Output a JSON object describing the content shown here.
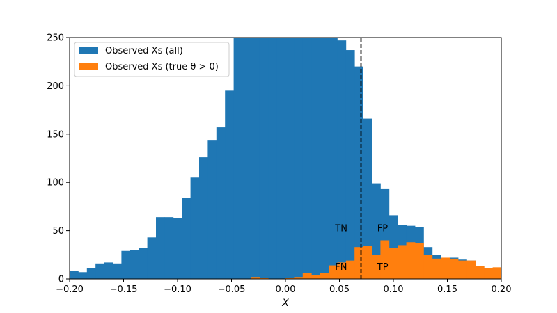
{
  "chart_data": {
    "type": "bar",
    "xlabel": "X",
    "ylabel": "",
    "xlim": [
      -0.2,
      0.2
    ],
    "ylim": [
      0,
      250
    ],
    "xticks": [
      "-0.20",
      "-0.15",
      "-0.10",
      "-0.05",
      "0.00",
      "0.05",
      "0.10",
      "0.15",
      "0.20"
    ],
    "yticks": [
      "0",
      "50",
      "100",
      "150",
      "200",
      "250"
    ],
    "grid": false,
    "legend_position": "upper-left",
    "threshold_line": {
      "x": 0.07,
      "style": "dashed",
      "color": "#000000"
    },
    "bin_edges_start": -0.2,
    "bin_width": 0.008,
    "series": [
      {
        "name": "Observed $X$s (all)",
        "legend_label": "Observed Xs (all)",
        "color": "#1f77b4",
        "values": [
          8,
          7,
          11,
          16,
          17,
          16,
          29,
          30,
          32,
          43,
          64,
          64,
          63,
          84,
          105,
          126,
          144,
          157,
          195,
          250,
          250,
          250,
          250,
          250,
          250,
          250,
          250,
          250,
          250,
          250,
          250,
          247,
          237,
          220,
          166,
          99,
          93,
          66,
          56,
          55,
          54,
          33,
          25,
          21,
          22,
          20,
          19,
          13,
          11,
          11
        ]
      },
      {
        "name": "Observed $X$s (true $\\theta > 0$)",
        "legend_label": "Observed Xs (true θ > 0)",
        "color": "#ff7f0e",
        "values": [
          0,
          0,
          0,
          0,
          0,
          0,
          0,
          0,
          0,
          0,
          0,
          0,
          0,
          0,
          0,
          0,
          0,
          0,
          0,
          0,
          0,
          2,
          1,
          0,
          0,
          1,
          2,
          6,
          4,
          6,
          14,
          17,
          19,
          33,
          34,
          25,
          40,
          32,
          35,
          38,
          37,
          25,
          21,
          22,
          21,
          19,
          19,
          13,
          11,
          12
        ]
      }
    ],
    "annotations": [
      {
        "text": "TN",
        "x": 0.046,
        "y": 53
      },
      {
        "text": "FP",
        "x": 0.085,
        "y": 53
      },
      {
        "text": "FN",
        "x": 0.046,
        "y": 13
      },
      {
        "text": "TP",
        "x": 0.085,
        "y": 13
      }
    ]
  }
}
